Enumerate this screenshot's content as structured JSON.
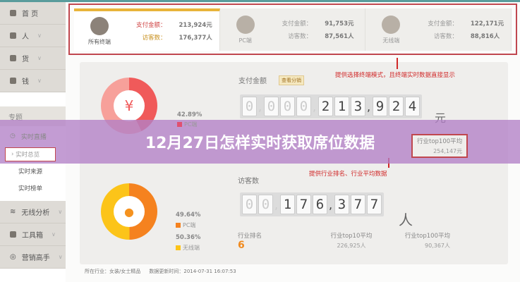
{
  "sidebar": {
    "items": [
      {
        "label": "首 页"
      },
      {
        "label": "人"
      },
      {
        "label": "货"
      },
      {
        "label": "钱"
      }
    ],
    "section": "专题",
    "live": "实时直播",
    "subitems": [
      "实时总览",
      "实时来源",
      "实时榜单"
    ],
    "bottom": [
      {
        "label": "无线分析"
      },
      {
        "label": "工具箱"
      },
      {
        "label": "营销高手"
      }
    ]
  },
  "terminals": [
    {
      "name": "所有终端",
      "pay_label": "支付金额：",
      "pay": "213,924元",
      "visit_label": "访客数：",
      "visits": "176,377人",
      "active": true
    },
    {
      "name": "PC端",
      "pay_label": "支付金额：",
      "pay": "91,753元",
      "visit_label": "访客数：",
      "visits": "87,561人"
    },
    {
      "name": "无线端",
      "pay_label": "支付金额：",
      "pay": "122,171元",
      "visit_label": "访客数：",
      "visits": "88,816人"
    }
  ],
  "notes": {
    "terminal": "提供选择终端模式，且终端实时数据直接显示",
    "industry": "提供行业排名、行业平均数据"
  },
  "payment": {
    "title": "支付金额",
    "badge": "查看分销",
    "digits": [
      "0",
      ",",
      "0",
      "0",
      "0",
      ",",
      "2",
      "1",
      "3",
      ",",
      "9",
      "2",
      "4"
    ],
    "unit": "元",
    "pc_pct": "42.89%",
    "pc_label": "PC端",
    "top100_label": "行业top100平均",
    "top100": "254,147元",
    "color_main": "#f05a5a",
    "color_light": "#f7a09a"
  },
  "visitors": {
    "title": "访客数",
    "digits": [
      "0",
      "0",
      ",",
      "1",
      "7",
      "6",
      ",",
      "3",
      "7",
      "7"
    ],
    "unit": "人",
    "pc_pct": "49.64%",
    "pc_label": "PC端",
    "wl_pct": "50.36%",
    "wl_label": "无线端",
    "rank_label": "行业排名",
    "rank": "6",
    "top10_label": "行业top10平均",
    "top10": "226,925人",
    "top100_label": "行业top100平均",
    "top100": "90,367人",
    "color_pc": "#f5821f",
    "color_wl": "#fcc419"
  },
  "footer": {
    "industry": "所在行业：女装/女士精品",
    "updated": "数据更新时间：2014-07-31 16:07:53"
  },
  "banner": {
    "title": "12月27日怎样实时获取席位数据"
  }
}
